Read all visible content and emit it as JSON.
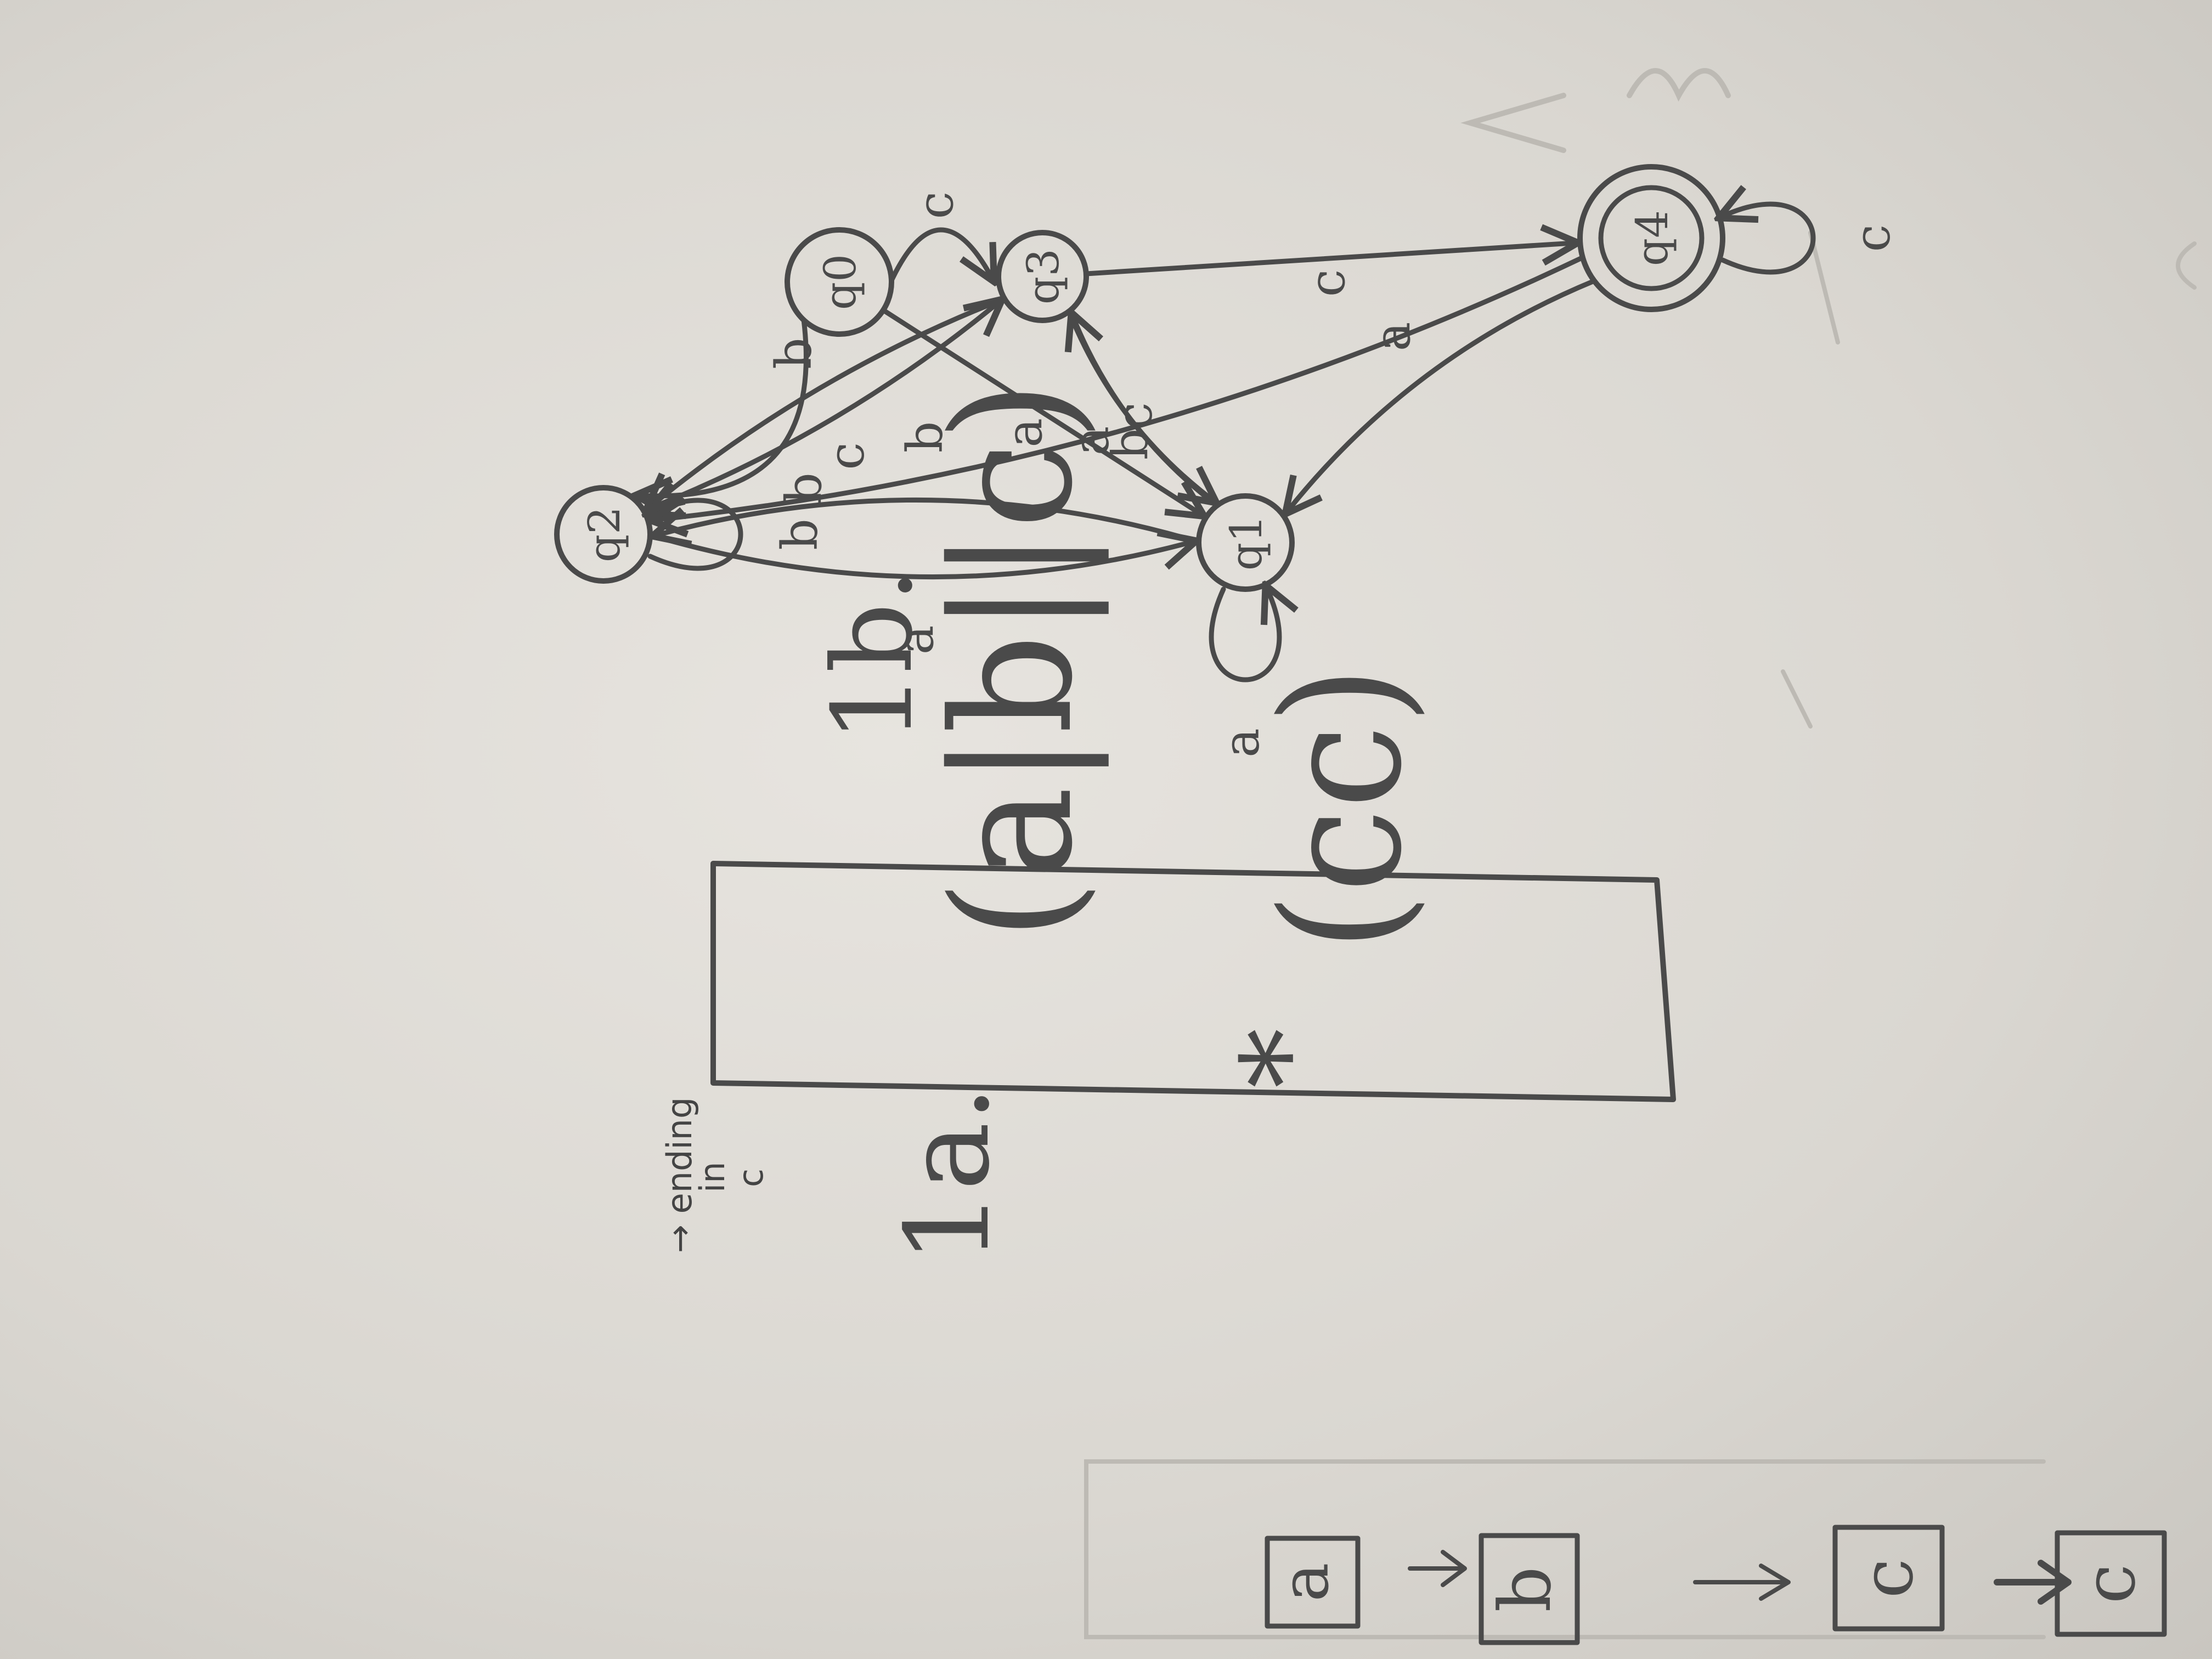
{
  "strip": {
    "boxes": [
      "a",
      "b",
      "c",
      "c"
    ]
  },
  "part_1a": {
    "label": "1a.",
    "note_line1": "→ ending",
    "note_line2": "in",
    "note_line3": "c",
    "regex_main": "(a|b||c)",
    "regex_star": "*",
    "regex_tail": "(cc)"
  },
  "part_1b": {
    "label": "1b.",
    "states": [
      {
        "id": "q0",
        "label": "q0",
        "accepting": false
      },
      {
        "id": "q1",
        "label": "q1",
        "accepting": false
      },
      {
        "id": "q2",
        "label": "q2",
        "accepting": false
      },
      {
        "id": "q3",
        "label": "q3",
        "accepting": false
      },
      {
        "id": "q4",
        "label": "q4",
        "accepting": true
      }
    ],
    "transitions": [
      {
        "from": "q0",
        "to": "q1",
        "label": "a"
      },
      {
        "from": "q0",
        "to": "q2",
        "label": "b"
      },
      {
        "from": "q0",
        "to": "q3",
        "label": "c"
      },
      {
        "from": "q1",
        "to": "q1",
        "label": "a"
      },
      {
        "from": "q1",
        "to": "q2",
        "label": "b"
      },
      {
        "from": "q1",
        "to": "q3",
        "label": "c"
      },
      {
        "from": "q2",
        "to": "q1",
        "label": "a"
      },
      {
        "from": "q2",
        "to": "q2",
        "label": "b"
      },
      {
        "from": "q2",
        "to": "q3",
        "label": "c"
      },
      {
        "from": "q3",
        "to": "q1",
        "label": "a"
      },
      {
        "from": "q3",
        "to": "q2",
        "label": "b"
      },
      {
        "from": "q3",
        "to": "q4",
        "label": "c"
      },
      {
        "from": "q4",
        "to": "q1",
        "label": "a"
      },
      {
        "from": "q4",
        "to": "q2",
        "label": "b"
      },
      {
        "from": "q4",
        "to": "q4",
        "label": "c"
      }
    ]
  }
}
